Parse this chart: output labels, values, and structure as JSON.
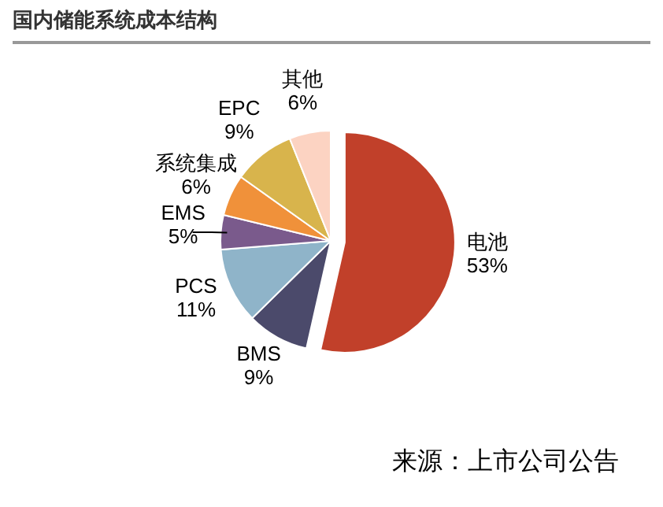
{
  "chart_data": {
    "type": "pie",
    "title": "国内储能系统成本结构",
    "categories": [
      "电池",
      "BMS",
      "PCS",
      "EMS",
      "系统集成",
      "EPC",
      "其他"
    ],
    "values": [
      53,
      9,
      11,
      5,
      6,
      9,
      6
    ],
    "colors": [
      "#c1402a",
      "#4b4a6b",
      "#8fb4c9",
      "#7a5a8c",
      "#f0913a",
      "#d8b44c",
      "#fcd3c2"
    ],
    "value_labels": [
      "53%",
      "9%",
      "11%",
      "5%",
      "6%",
      "9%",
      "6%"
    ],
    "annotations": [
      "来源：上市公司公告"
    ]
  }
}
